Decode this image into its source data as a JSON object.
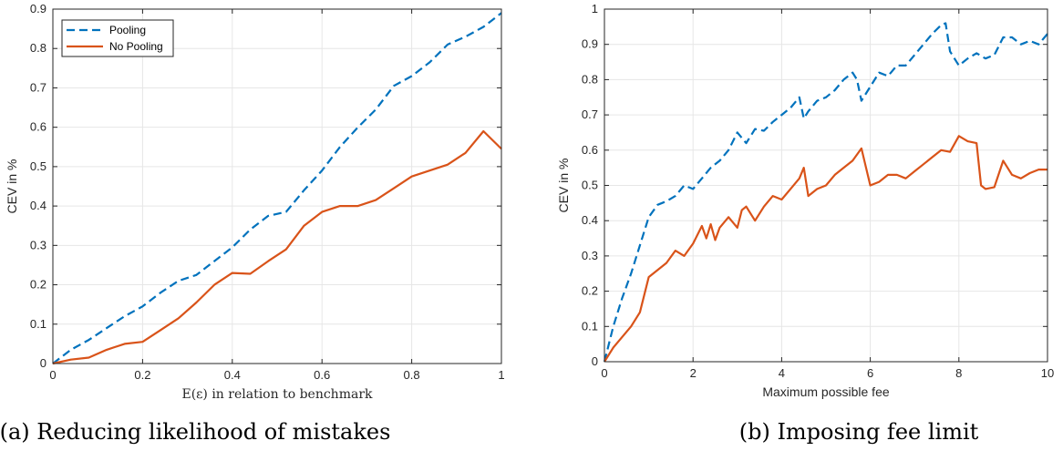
{
  "colors": {
    "pooling": "#0072BD",
    "no_pooling": "#D95319",
    "grid": "#e6e6e6",
    "axis": "#262626"
  },
  "chart_data": [
    {
      "type": "line",
      "caption": "(a) Reducing likelihood of mistakes",
      "xlabel": "E(ε) in relation to benchmark",
      "ylabel": "CEV in %",
      "xlim": [
        0,
        1
      ],
      "ylim": [
        0,
        0.9
      ],
      "xticks": [
        0,
        0.2,
        0.4,
        0.6,
        0.8,
        1
      ],
      "xtick_labels": [
        "0",
        "0.2",
        "0.4",
        "0.6",
        "0.8",
        "1"
      ],
      "yticks": [
        0,
        0.1,
        0.2,
        0.3,
        0.4,
        0.5,
        0.6,
        0.7,
        0.8,
        0.9
      ],
      "ytick_labels": [
        "0",
        "0.1",
        "0.2",
        "0.3",
        "0.4",
        "0.5",
        "0.6",
        "0.7",
        "0.8",
        "0.9"
      ],
      "grid": true,
      "legend": "top-left",
      "series": [
        {
          "name": "Pooling",
          "style": "dashed",
          "x": [
            0,
            0.04,
            0.08,
            0.12,
            0.16,
            0.2,
            0.24,
            0.28,
            0.32,
            0.36,
            0.4,
            0.44,
            0.48,
            0.52,
            0.56,
            0.6,
            0.64,
            0.68,
            0.72,
            0.76,
            0.8,
            0.84,
            0.88,
            0.92,
            0.96,
            1
          ],
          "y": [
            0,
            0.035,
            0.06,
            0.09,
            0.12,
            0.145,
            0.18,
            0.21,
            0.225,
            0.26,
            0.295,
            0.34,
            0.375,
            0.385,
            0.44,
            0.49,
            0.55,
            0.6,
            0.645,
            0.705,
            0.73,
            0.765,
            0.81,
            0.83,
            0.855,
            0.89
          ]
        },
        {
          "name": "No Pooling",
          "style": "solid",
          "x": [
            0,
            0.04,
            0.08,
            0.12,
            0.16,
            0.2,
            0.24,
            0.28,
            0.32,
            0.36,
            0.4,
            0.44,
            0.48,
            0.52,
            0.56,
            0.6,
            0.64,
            0.68,
            0.72,
            0.76,
            0.8,
            0.84,
            0.88,
            0.92,
            0.96,
            1
          ],
          "y": [
            0,
            0.01,
            0.015,
            0.035,
            0.05,
            0.055,
            0.085,
            0.115,
            0.155,
            0.2,
            0.23,
            0.228,
            0.26,
            0.29,
            0.35,
            0.385,
            0.4,
            0.4,
            0.415,
            0.445,
            0.475,
            0.49,
            0.505,
            0.535,
            0.59,
            0.545
          ]
        }
      ]
    },
    {
      "type": "line",
      "caption": "(b) Imposing fee limit",
      "xlabel": "Maximum possible fee",
      "ylabel": "CEV in %",
      "xlim": [
        0,
        10
      ],
      "ylim": [
        0,
        1
      ],
      "xticks": [
        0,
        2,
        4,
        6,
        8,
        10
      ],
      "xtick_labels": [
        "0",
        "2",
        "4",
        "6",
        "8",
        "10"
      ],
      "yticks": [
        0,
        0.1,
        0.2,
        0.3,
        0.4,
        0.5,
        0.6,
        0.7,
        0.8,
        0.9,
        1
      ],
      "ytick_labels": [
        "0",
        "0.1",
        "0.2",
        "0.3",
        "0.4",
        "0.5",
        "0.6",
        "0.7",
        "0.8",
        "0.9",
        "1"
      ],
      "grid": true,
      "series": [
        {
          "style": "dashed",
          "x": [
            0,
            0.2,
            0.4,
            0.6,
            0.8,
            1.0,
            1.2,
            1.4,
            1.6,
            1.8,
            2.0,
            2.2,
            2.4,
            2.6,
            2.8,
            3.0,
            3.2,
            3.4,
            3.6,
            3.8,
            4.0,
            4.2,
            4.4,
            4.5,
            4.6,
            4.8,
            5.0,
            5.2,
            5.4,
            5.6,
            5.7,
            5.8,
            6.0,
            6.2,
            6.4,
            6.6,
            6.8,
            7.0,
            7.2,
            7.4,
            7.6,
            7.7,
            7.8,
            8.0,
            8.2,
            8.4,
            8.6,
            8.8,
            9.0,
            9.2,
            9.4,
            9.6,
            9.8,
            10
          ],
          "y": [
            0,
            0.1,
            0.18,
            0.25,
            0.33,
            0.41,
            0.445,
            0.455,
            0.47,
            0.5,
            0.49,
            0.52,
            0.55,
            0.57,
            0.6,
            0.65,
            0.62,
            0.66,
            0.655,
            0.68,
            0.7,
            0.72,
            0.75,
            0.69,
            0.71,
            0.74,
            0.75,
            0.77,
            0.8,
            0.82,
            0.8,
            0.74,
            0.78,
            0.82,
            0.81,
            0.84,
            0.84,
            0.87,
            0.9,
            0.93,
            0.955,
            0.96,
            0.88,
            0.84,
            0.86,
            0.875,
            0.86,
            0.87,
            0.92,
            0.92,
            0.9,
            0.91,
            0.9,
            0.93
          ]
        },
        {
          "style": "solid",
          "x": [
            0,
            0.2,
            0.4,
            0.6,
            0.8,
            1.0,
            1.2,
            1.4,
            1.6,
            1.8,
            2.0,
            2.2,
            2.3,
            2.4,
            2.5,
            2.6,
            2.8,
            3.0,
            3.1,
            3.2,
            3.4,
            3.6,
            3.8,
            4.0,
            4.2,
            4.4,
            4.5,
            4.6,
            4.8,
            5.0,
            5.2,
            5.4,
            5.6,
            5.8,
            6.0,
            6.2,
            6.4,
            6.6,
            6.8,
            7.0,
            7.2,
            7.4,
            7.6,
            7.8,
            8.0,
            8.2,
            8.4,
            8.5,
            8.6,
            8.8,
            9.0,
            9.2,
            9.4,
            9.6,
            9.8,
            10
          ],
          "y": [
            0,
            0.04,
            0.07,
            0.1,
            0.14,
            0.24,
            0.26,
            0.28,
            0.315,
            0.3,
            0.335,
            0.385,
            0.35,
            0.39,
            0.345,
            0.38,
            0.41,
            0.38,
            0.43,
            0.44,
            0.4,
            0.44,
            0.47,
            0.46,
            0.49,
            0.52,
            0.55,
            0.47,
            0.49,
            0.5,
            0.53,
            0.55,
            0.57,
            0.605,
            0.5,
            0.51,
            0.53,
            0.53,
            0.52,
            0.54,
            0.56,
            0.58,
            0.6,
            0.595,
            0.64,
            0.625,
            0.62,
            0.5,
            0.49,
            0.495,
            0.57,
            0.53,
            0.52,
            0.535,
            0.545,
            0.545
          ]
        }
      ]
    }
  ]
}
